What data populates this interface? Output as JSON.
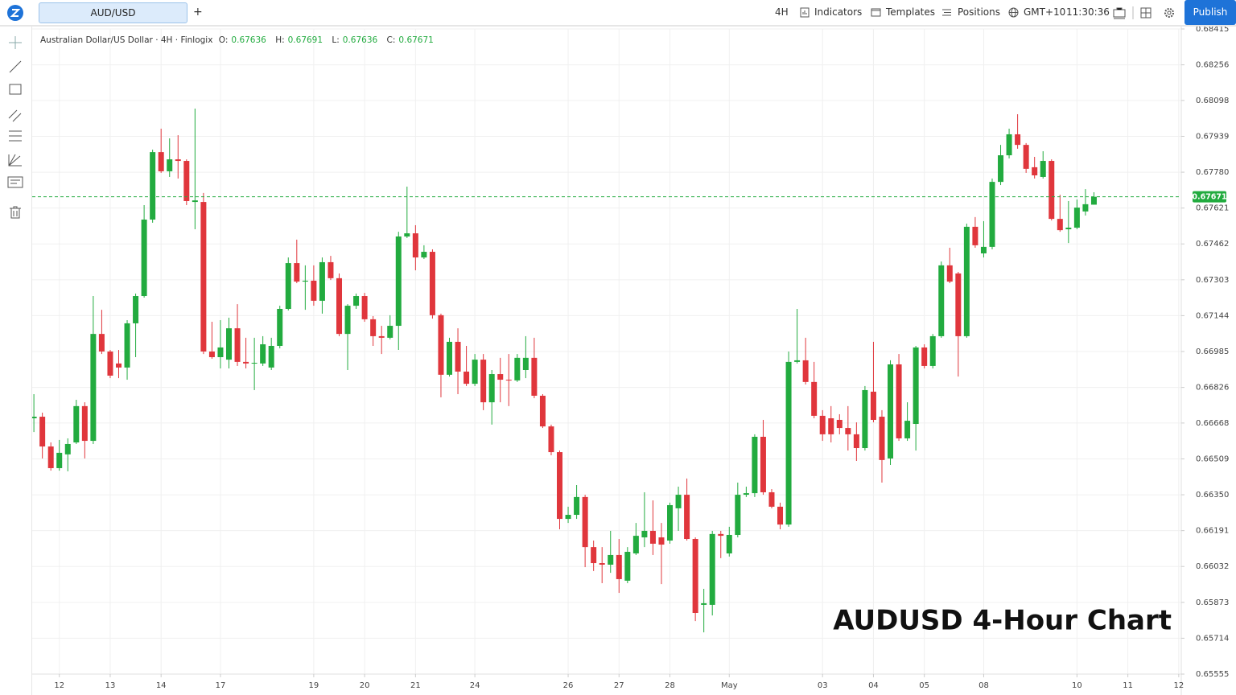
{
  "toolbar": {
    "symbol": "AUD/USD",
    "add": "+",
    "interval": "4H",
    "indicators": "Indicators",
    "templates": "Templates",
    "positions": "Positions",
    "timezone": "GMT+10",
    "clock": "11:30:36",
    "publish": "Publish"
  },
  "chart_data": {
    "type": "candlestick",
    "title": "AUDUSD 4-Hour Chart",
    "subtitle": "Australian Dollar/US Dollar · 4H · Finlogix",
    "ohlc_labels": [
      "O:",
      "H:",
      "L:",
      "C:"
    ],
    "up_color": "#22ab3f",
    "down_color": "#e0363c",
    "grid": true,
    "price_line": true,
    "xlim": [
      -0.2,
      135.3
    ],
    "xticks": [
      {
        "value": 3,
        "label": "12"
      },
      {
        "value": 9,
        "label": "13"
      },
      {
        "value": 15,
        "label": "14"
      },
      {
        "value": 22,
        "label": "17"
      },
      {
        "value": 33,
        "label": "19"
      },
      {
        "value": 39,
        "label": "20"
      },
      {
        "value": 45,
        "label": "21"
      },
      {
        "value": 52,
        "label": "24"
      },
      {
        "value": 63,
        "label": "26"
      },
      {
        "value": 69,
        "label": "27"
      },
      {
        "value": 75,
        "label": "28"
      },
      {
        "value": 82,
        "label": "May"
      },
      {
        "value": 93,
        "label": "03"
      },
      {
        "value": 99,
        "label": "04"
      },
      {
        "value": 105,
        "label": "05"
      },
      {
        "value": 112,
        "label": "08"
      },
      {
        "value": 123,
        "label": "10"
      },
      {
        "value": 129,
        "label": "11"
      },
      {
        "value": 135,
        "label": "12"
      }
    ],
    "ylim": [
      0.65555,
      0.68415
    ],
    "yticks": [
      0.68415,
      0.68256,
      0.68098,
      0.67939,
      {
        "value": 0.6778,
        "label": "0.67780"
      },
      0.67621,
      0.67462,
      0.67303,
      0.67144,
      0.66985,
      0.66826,
      0.66668,
      0.66509,
      {
        "value": 0.6635,
        "label": "0.66350"
      },
      0.66191,
      0.66032,
      0.65873,
      0.65714,
      0.65555
    ],
    "open": [
      0.66689,
      0.66696,
      0.66564,
      0.66468,
      0.66529,
      0.66582,
      0.66743,
      0.66589,
      0.67063,
      0.66985,
      0.66932,
      0.66914,
      0.6711,
      0.67231,
      0.6757,
      0.67869,
      0.67784,
      0.67837,
      0.6783,
      0.67648,
      0.67648,
      0.66985,
      0.6696,
      0.66949,
      0.67088,
      0.66939,
      0.66932,
      0.66932,
      0.66914,
      0.6701,
      0.67174,
      0.67377,
      0.67295,
      0.67299,
      0.6721,
      0.67381,
      0.6731,
      0.67063,
      0.67188,
      0.67231,
      0.67128,
      0.67053,
      0.67046,
      0.67099,
      0.67495,
      0.67509,
      0.67402,
      0.67427,
      0.67146,
      0.66882,
      0.67028,
      0.66896,
      0.66842,
      0.66949,
      0.6676,
      0.66885,
      0.6686,
      0.66857,
      0.66903,
      0.66957,
      0.66789,
      0.66653,
      0.66539,
      0.66243,
      0.66261,
      0.6634,
      0.66118,
      0.66047,
      0.6604,
      0.66083,
      0.65969,
      0.6609,
      0.66161,
      0.6619,
      0.66161,
      0.66147,
      0.6629,
      0.6635,
      0.66154,
      0.65862,
      0.65862,
      0.66176,
      0.6609,
      0.66172,
      0.6635,
      0.66357,
      0.66607,
      0.66361,
      0.66297,
      0.66218,
      0.66939,
      0.66946,
      0.6685,
      0.667,
      0.66689,
      0.66682,
      0.66646,
      0.66618,
      0.66557,
      0.66807,
      0.66696,
      0.66511,
      0.66928,
      0.666,
      0.66664,
      0.67003,
      0.66921,
      0.67053,
      0.67367,
      0.67331,
      0.67053,
      0.67538,
      0.6742,
      0.67449,
      0.67737,
      0.67855,
      0.67948,
      0.67901,
      0.67802,
      0.67759,
      0.6783,
      0.67573,
      0.67527,
      0.67534,
      0.67606,
      0.67636
    ],
    "high": [
      0.66796,
      0.66714,
      0.66582,
      0.66593,
      0.666,
      0.66771,
      0.6676,
      0.67231,
      0.6717,
      0.66992,
      0.66992,
      0.67124,
      0.67242,
      0.67634,
      0.6788,
      0.67973,
      0.6793,
      0.67944,
      0.67837,
      0.68062,
      0.67688,
      0.67117,
      0.67124,
      0.67135,
      0.67195,
      0.67046,
      0.67046,
      0.67053,
      0.67046,
      0.67188,
      0.67402,
      0.67481,
      0.67367,
      0.67367,
      0.67402,
      0.67409,
      0.67331,
      0.67195,
      0.67242,
      0.67245,
      0.67142,
      0.67099,
      0.67146,
      0.67516,
      0.67716,
      0.67545,
      0.67456,
      0.67438,
      0.67153,
      0.67046,
      0.67088,
      0.6701,
      0.66974,
      0.66974,
      0.66903,
      0.66957,
      0.66974,
      0.66974,
      0.67053,
      0.67046,
      0.66796,
      0.66661,
      0.66546,
      0.66297,
      0.66393,
      0.6635,
      0.66147,
      0.66118,
      0.6619,
      0.66154,
      0.66118,
      0.66225,
      0.66361,
      0.66325,
      0.66225,
      0.66315,
      0.66386,
      0.66422,
      0.66161,
      0.65933,
      0.6619,
      0.6619,
      0.66208,
      0.66404,
      0.66386,
      0.66618,
      0.66682,
      0.66375,
      0.66315,
      0.66985,
      0.67174,
      0.67046,
      0.66939,
      0.66725,
      0.66743,
      0.66707,
      0.66743,
      0.66671,
      0.66832,
      0.67028,
      0.66725,
      0.66946,
      0.66974,
      0.6676,
      0.6701,
      0.67017,
      0.67063,
      0.67384,
      0.67445,
      0.67338,
      0.67552,
      0.67581,
      0.67563,
      0.67752,
      0.67901,
      0.67973,
      0.68037,
      0.67909,
      0.67848,
      0.67873,
      0.67837,
      0.6768,
      0.67652,
      0.67659,
      0.67705,
      0.67691
    ],
    "low": [
      0.66628,
      0.66511,
      0.66457,
      0.66457,
      0.66454,
      0.66575,
      0.66511,
      0.66575,
      0.66974,
      0.66867,
      0.66867,
      0.6686,
      0.6696,
      0.67224,
      0.67556,
      0.67777,
      0.67759,
      0.67752,
      0.67634,
      0.67527,
      0.66974,
      0.66953,
      0.6691,
      0.6691,
      0.66921,
      0.6691,
      0.66814,
      0.66921,
      0.66903,
      0.66999,
      0.67167,
      0.67288,
      0.6717,
      0.67188,
      0.67153,
      0.67302,
      0.67053,
      0.66903,
      0.67174,
      0.67117,
      0.6701,
      0.66974,
      0.67039,
      0.66992,
      0.67488,
      0.67345,
      0.67395,
      0.67131,
      0.66782,
      0.66874,
      0.66796,
      0.66832,
      0.66832,
      0.66725,
      0.66661,
      0.6676,
      0.66743,
      0.6685,
      0.66867,
      0.66778,
      0.66646,
      0.66525,
      0.66197,
      0.66225,
      0.66243,
      0.66029,
      0.66012,
      0.65958,
      0.66004,
      0.65915,
      0.65958,
      0.66083,
      0.66118,
      0.66083,
      0.65954,
      0.66133,
      0.6619,
      0.66147,
      0.6579,
      0.6574,
      0.65815,
      0.66069,
      0.66076,
      0.66161,
      0.6634,
      0.6634,
      0.6635,
      0.6629,
      0.66197,
      0.66208,
      0.66932,
      0.66839,
      0.66689,
      0.66589,
      0.66582,
      0.66618,
      0.66546,
      0.665,
      0.66546,
      0.66671,
      0.66404,
      0.66482,
      0.66589,
      0.66589,
      0.66546,
      0.6691,
      0.6691,
      0.67046,
      0.67288,
      0.66874,
      0.67046,
      0.67445,
      0.67402,
      0.67438,
      0.67723,
      0.67841,
      0.67884,
      0.67777,
      0.67752,
      0.67752,
      0.67566,
      0.67516,
      0.67466,
      0.67527,
      0.67588,
      0.67636
    ],
    "close": [
      0.66696,
      0.66564,
      0.66468,
      0.66536,
      0.66575,
      0.66743,
      0.66589,
      0.67063,
      0.66985,
      0.66878,
      0.66914,
      0.6711,
      0.67231,
      0.6757,
      0.67869,
      0.67784,
      0.67837,
      0.6783,
      0.67652,
      0.67655,
      0.66985,
      0.6696,
      0.67003,
      0.67088,
      0.66939,
      0.66932,
      0.66935,
      0.67017,
      0.6701,
      0.67174,
      0.67377,
      0.67295,
      0.67299,
      0.6721,
      0.67381,
      0.6731,
      0.67063,
      0.67188,
      0.67231,
      0.67128,
      0.67053,
      0.67046,
      0.67099,
      0.67495,
      0.67509,
      0.67402,
      0.67427,
      0.67146,
      0.66882,
      0.67028,
      0.66896,
      0.66842,
      0.66949,
      0.6676,
      0.66885,
      0.6686,
      0.66857,
      0.66957,
      0.66957,
      0.66789,
      0.66653,
      0.66539,
      0.66243,
      0.66261,
      0.6634,
      0.66118,
      0.66047,
      0.6604,
      0.66083,
      0.65976,
      0.66097,
      0.66168,
      0.6619,
      0.66133,
      0.66129,
      0.66304,
      0.6635,
      0.66154,
      0.65826,
      0.65869,
      0.66176,
      0.66168,
      0.66172,
      0.6635,
      0.66357,
      0.66607,
      0.66361,
      0.66297,
      0.66218,
      0.66939,
      0.66946,
      0.6685,
      0.667,
      0.66618,
      0.66618,
      0.66646,
      0.66618,
      0.66557,
      0.66814,
      0.66682,
      0.66504,
      0.66928,
      0.666,
      0.66678,
      0.67003,
      0.66921,
      0.67053,
      0.67367,
      0.67295,
      0.67053,
      0.67538,
      0.67456,
      0.67449,
      0.67737,
      0.67855,
      0.67948,
      0.67901,
      0.67795,
      0.67766,
      0.6783,
      0.67573,
      0.67523,
      0.67534,
      0.67623,
      0.67638,
      0.67671
    ]
  }
}
